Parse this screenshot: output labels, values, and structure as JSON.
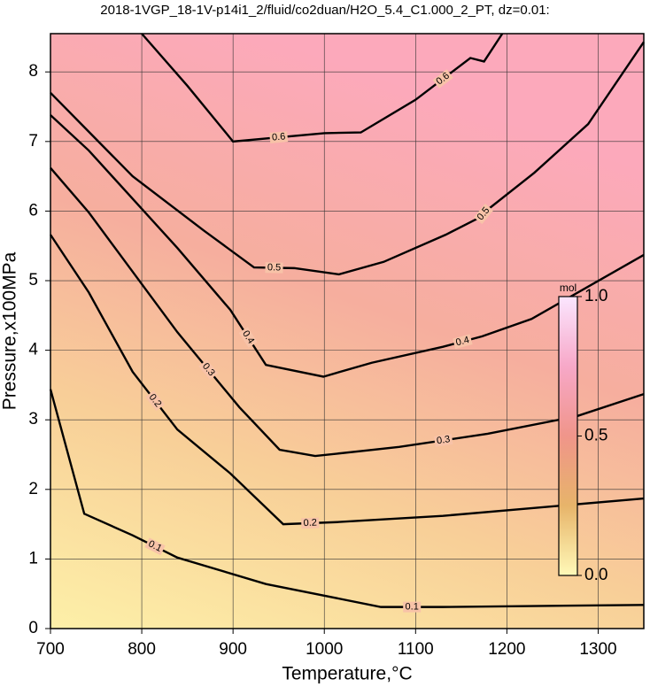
{
  "chart_data": {
    "type": "contour",
    "title": "2018-1VGP_18-1V-p14i1_2/fluid/co2duan/H2O_5.4_C1.000_2_PT, dz=0.01:",
    "x_label": "Temperature,°C",
    "y_label": "Pressure,x100MPa",
    "xlim": [
      700,
      1350
    ],
    "ylim": [
      0,
      8.55
    ],
    "xticks": [
      700,
      800,
      900,
      1000,
      1100,
      1200,
      1300
    ],
    "yticks": [
      0,
      1,
      2,
      3,
      4,
      5,
      6,
      7,
      8
    ],
    "grid": true,
    "contours": [
      {
        "level": 0.6,
        "x": [
          800,
          850,
          900,
          1000,
          1040,
          1100,
          1160,
          1175,
          1195
        ],
        "y": [
          8.55,
          7.8,
          7.0,
          7.12,
          7.13,
          7.6,
          8.2,
          8.15,
          8.55
        ]
      },
      {
        "level": 0.5,
        "x": [
          700,
          790,
          868,
          923,
          967,
          1016,
          1065,
          1133,
          1172,
          1177,
          1230,
          1289,
          1350
        ],
        "y": [
          7.7,
          6.5,
          5.72,
          5.19,
          5.18,
          5.09,
          5.27,
          5.66,
          5.92,
          6.0,
          6.55,
          7.25,
          8.43
        ]
      },
      {
        "level": 0.4,
        "x": [
          700,
          742,
          839,
          897,
          936,
          999,
          1052,
          1130,
          1173,
          1227,
          1350
        ],
        "y": [
          7.38,
          6.87,
          5.47,
          4.58,
          3.79,
          3.62,
          3.82,
          4.05,
          4.2,
          4.45,
          5.37
        ]
      },
      {
        "level": 0.3,
        "x": [
          700,
          742,
          839,
          907,
          951,
          990,
          1082,
          1179,
          1276,
          1350
        ],
        "y": [
          6.62,
          5.98,
          4.26,
          3.18,
          2.57,
          2.48,
          2.61,
          2.8,
          3.05,
          3.37
        ]
      },
      {
        "level": 0.2,
        "x": [
          700,
          742,
          790,
          839,
          897,
          955,
          1014,
          1130,
          1350
        ],
        "y": [
          5.66,
          4.83,
          3.69,
          2.86,
          2.23,
          1.5,
          1.53,
          1.62,
          1.87
        ]
      },
      {
        "level": 0.1,
        "x": [
          700,
          737,
          790,
          839,
          936,
          1062,
          1130,
          1350
        ],
        "y": [
          3.44,
          1.65,
          1.34,
          1.02,
          0.64,
          0.31,
          0.31,
          0.34
        ]
      }
    ],
    "colorbar": {
      "label": "mol",
      "lim": [
        0,
        1
      ],
      "ticks": [
        {
          "value": 0,
          "label": "0.0"
        },
        0.5,
        {
          "value": 1,
          "label": "1.0"
        }
      ],
      "colors": [
        "#fff9b8",
        "#e7b46a",
        "#f0958a",
        "#f7a8c8",
        "#fbe6ff"
      ]
    }
  }
}
